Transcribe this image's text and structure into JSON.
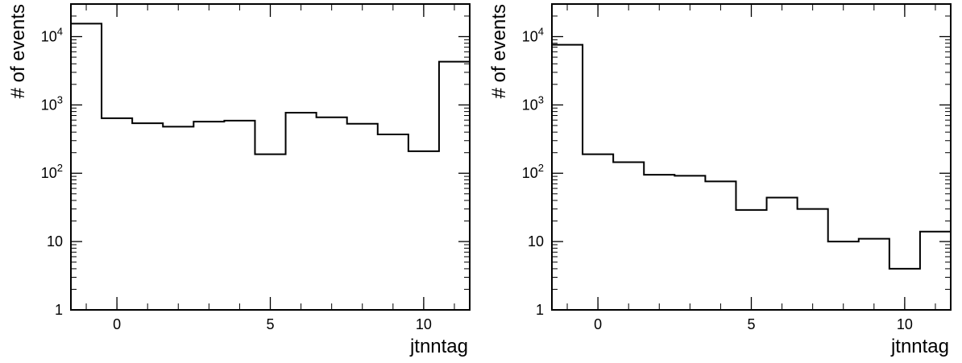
{
  "chart_data": [
    {
      "type": "histogram",
      "title": "",
      "xlabel": "jtnntag",
      "ylabel": "# of events",
      "yscale": "log",
      "xlim": [
        -1.5,
        11.5
      ],
      "ylim": [
        1,
        30000
      ],
      "bin_width": 1,
      "x": [
        -1,
        0,
        1,
        2,
        3,
        4,
        5,
        6,
        7,
        8,
        9,
        10,
        11
      ],
      "values": [
        15500,
        640,
        540,
        480,
        570,
        590,
        190,
        770,
        660,
        530,
        370,
        210,
        4300
      ],
      "xticks": [
        0,
        5,
        10
      ],
      "xtick_labels": [
        "0",
        "5",
        "10"
      ],
      "yticks": [
        1,
        10,
        100,
        1000,
        10000
      ],
      "ytick_labels": [
        {
          "base": "1",
          "exp": ""
        },
        {
          "base": "10",
          "exp": ""
        },
        {
          "base": "10",
          "exp": "2"
        },
        {
          "base": "10",
          "exp": "3"
        },
        {
          "base": "10",
          "exp": "4"
        }
      ],
      "grid": false,
      "line_color": "#000000"
    },
    {
      "type": "histogram",
      "title": "",
      "xlabel": "jtnntag",
      "ylabel": "# of events",
      "yscale": "log",
      "xlim": [
        -1.5,
        11.5
      ],
      "ylim": [
        1,
        30000
      ],
      "bin_width": 1,
      "x": [
        -1,
        0,
        1,
        2,
        3,
        4,
        5,
        6,
        7,
        8,
        9,
        10,
        11
      ],
      "values": [
        7600,
        190,
        145,
        95,
        92,
        76,
        29,
        44,
        30,
        10,
        11,
        4,
        14
      ],
      "xticks": [
        0,
        5,
        10
      ],
      "xtick_labels": [
        "0",
        "5",
        "10"
      ],
      "yticks": [
        1,
        10,
        100,
        1000,
        10000
      ],
      "ytick_labels": [
        {
          "base": "1",
          "exp": ""
        },
        {
          "base": "10",
          "exp": ""
        },
        {
          "base": "10",
          "exp": "2"
        },
        {
          "base": "10",
          "exp": "3"
        },
        {
          "base": "10",
          "exp": "4"
        }
      ],
      "grid": false,
      "line_color": "#000000"
    }
  ]
}
